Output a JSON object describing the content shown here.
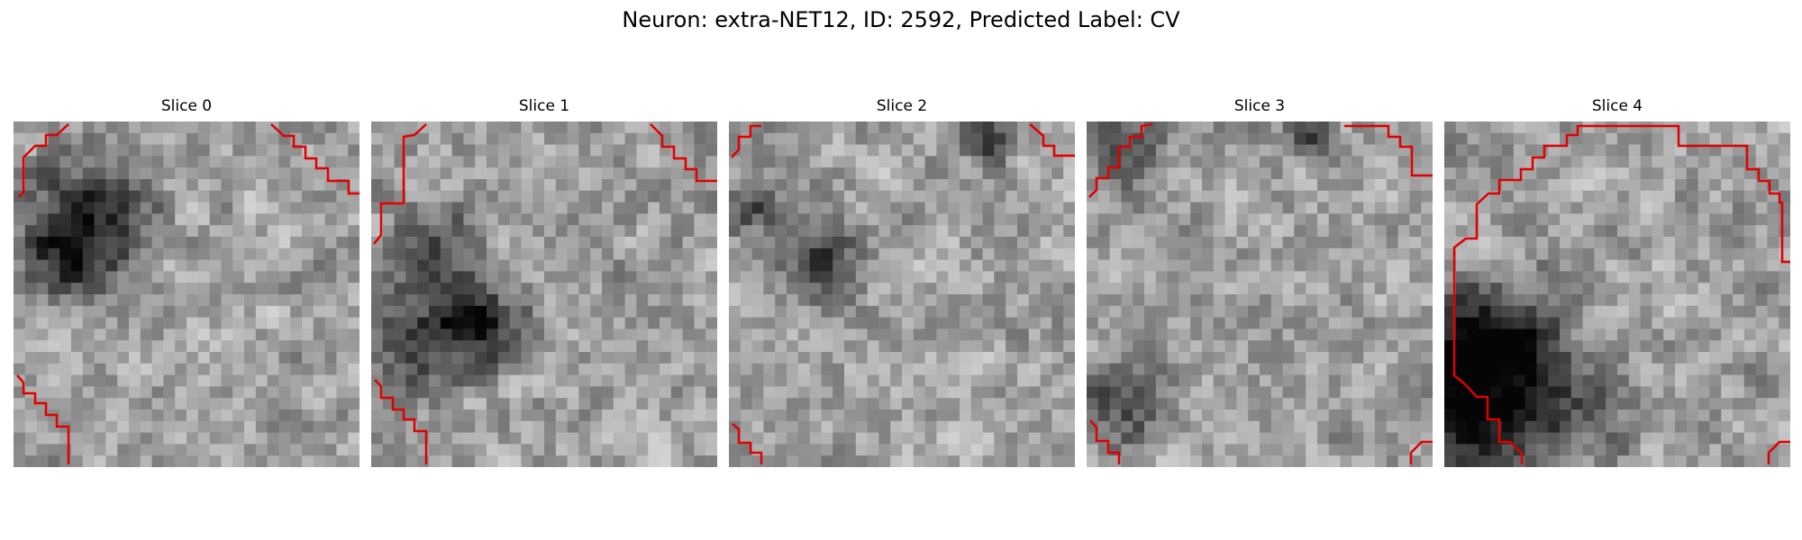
{
  "figure": {
    "title": "Neuron: extra-NET12, ID: 2592, Predicted Label: CV"
  },
  "panels": [
    {
      "title": "Slice 0",
      "texture_seed": 11,
      "dark_blobs": [
        {
          "cx": 6,
          "cy": 8,
          "r": 5,
          "depth": 0.55
        },
        {
          "cx": 4,
          "cy": 12,
          "r": 3.5,
          "depth": 0.35
        }
      ]
    },
    {
      "title": "Slice 1",
      "texture_seed": 23,
      "dark_blobs": [
        {
          "cx": 4,
          "cy": 18,
          "r": 4.5,
          "depth": 0.5
        },
        {
          "cx": 10,
          "cy": 17,
          "r": 3.5,
          "depth": 0.45
        },
        {
          "cx": 5,
          "cy": 10,
          "r": 3.5,
          "depth": 0.35
        }
      ]
    },
    {
      "title": "Slice 2",
      "texture_seed": 37,
      "dark_blobs": [
        {
          "cx": 7,
          "cy": 11,
          "r": 3.5,
          "depth": 0.45
        },
        {
          "cx": 1,
          "cy": 7,
          "r": 2,
          "depth": 0.45
        },
        {
          "cx": 22,
          "cy": 1,
          "r": 2,
          "depth": 0.5
        }
      ]
    },
    {
      "title": "Slice 3",
      "texture_seed": 53,
      "dark_blobs": [
        {
          "cx": 3,
          "cy": 24,
          "r": 3.5,
          "depth": 0.4
        },
        {
          "cx": 3,
          "cy": 2,
          "r": 3,
          "depth": 0.3
        },
        {
          "cx": 19,
          "cy": 1,
          "r": 2,
          "depth": 0.35
        }
      ]
    },
    {
      "title": "Slice 4",
      "texture_seed": 71,
      "dark_blobs": [
        {
          "cx": 1,
          "cy": 24,
          "r": 7,
          "depth": 0.75
        },
        {
          "cx": 5,
          "cy": 18,
          "r": 5,
          "depth": 0.45
        },
        {
          "cx": 12,
          "cy": 24,
          "r": 4,
          "depth": 0.3
        }
      ]
    }
  ],
  "image_grid_size": 30,
  "style": {
    "contour_color": "#e00000",
    "background": "#ffffff"
  }
}
